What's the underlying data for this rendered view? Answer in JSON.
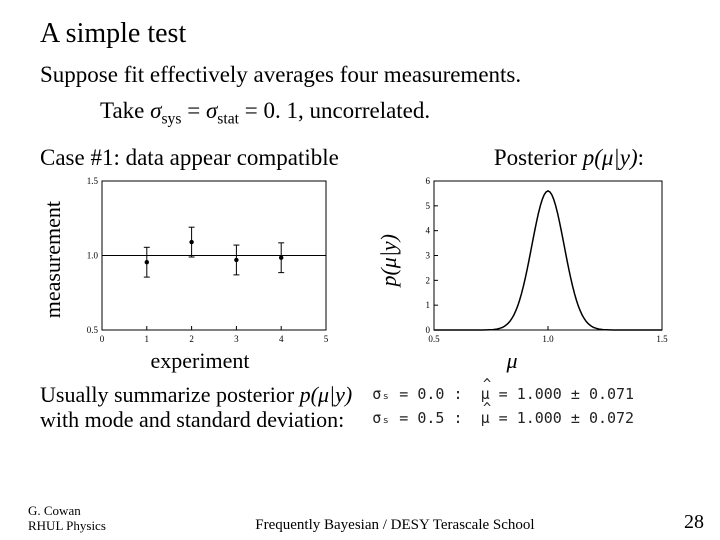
{
  "title": "A simple test",
  "subtitle": "Suppose fit effectively averages four measurements.",
  "take_prefix": "Take ",
  "sigma_sys": "σ",
  "sys_sub": "sys",
  "eq_mid": " = ",
  "sigma_stat": "σ",
  "stat_sub": "stat",
  "take_suffix": " = 0. 1, uncorrelated.",
  "case_label": "Case #1: data appear compatible",
  "posterior_prefix": "Posterior ",
  "p_mu_y": "p(μ|y)",
  "posterior_suffix": ":",
  "ylabel_left": "measurement",
  "ylabel_right": "p(μ|y)",
  "xlabel_left": "experiment",
  "xlabel_right": "μ",
  "summary_line1": "Usually summarize posterior ",
  "summary_line2": "with mode and standard deviation:",
  "results": {
    "row1_lhs": "σₛ = 0.0 :",
    "row1_mu_val": "1.000",
    "row1_pm": "±",
    "row1_err": "0.071",
    "row2_lhs": "σₛ = 0.5 :",
    "row2_mu_val": "1.000",
    "row2_pm": "±",
    "row2_err": "0.072"
  },
  "footer": {
    "author1": "G. Cowan",
    "author2": "RHUL Physics",
    "center": "Frequently Bayesian / DESY Terascale School",
    "page": "28"
  },
  "left_chart": {
    "frame_color": "#000000",
    "bg": "#ffffff",
    "tick_color": "#000000",
    "xlim": [
      0,
      5
    ],
    "ylim": [
      0.5,
      1.5
    ],
    "xtick_step": 1,
    "ytick_step": 0.5,
    "points": [
      {
        "x": 1,
        "y": 0.955,
        "err": 0.1
      },
      {
        "x": 2,
        "y": 1.09,
        "err": 0.1
      },
      {
        "x": 3,
        "y": 0.97,
        "err": 0.1
      },
      {
        "x": 4,
        "y": 0.985,
        "err": 0.1
      }
    ],
    "fit_line_y": 1.0,
    "marker_color": "#000000",
    "line_width": 1
  },
  "right_chart": {
    "frame_color": "#000000",
    "bg": "#ffffff",
    "tick_color": "#000000",
    "xlim": [
      0.5,
      1.5
    ],
    "ylim": [
      0,
      6
    ],
    "xtick_step": 0.5,
    "ytick_step": 1,
    "line_color": "#000000",
    "line_width": 1.5,
    "gaussian_mu": 1.0,
    "gaussian_sigma": 0.071,
    "gaussian_amp": 5.6
  }
}
